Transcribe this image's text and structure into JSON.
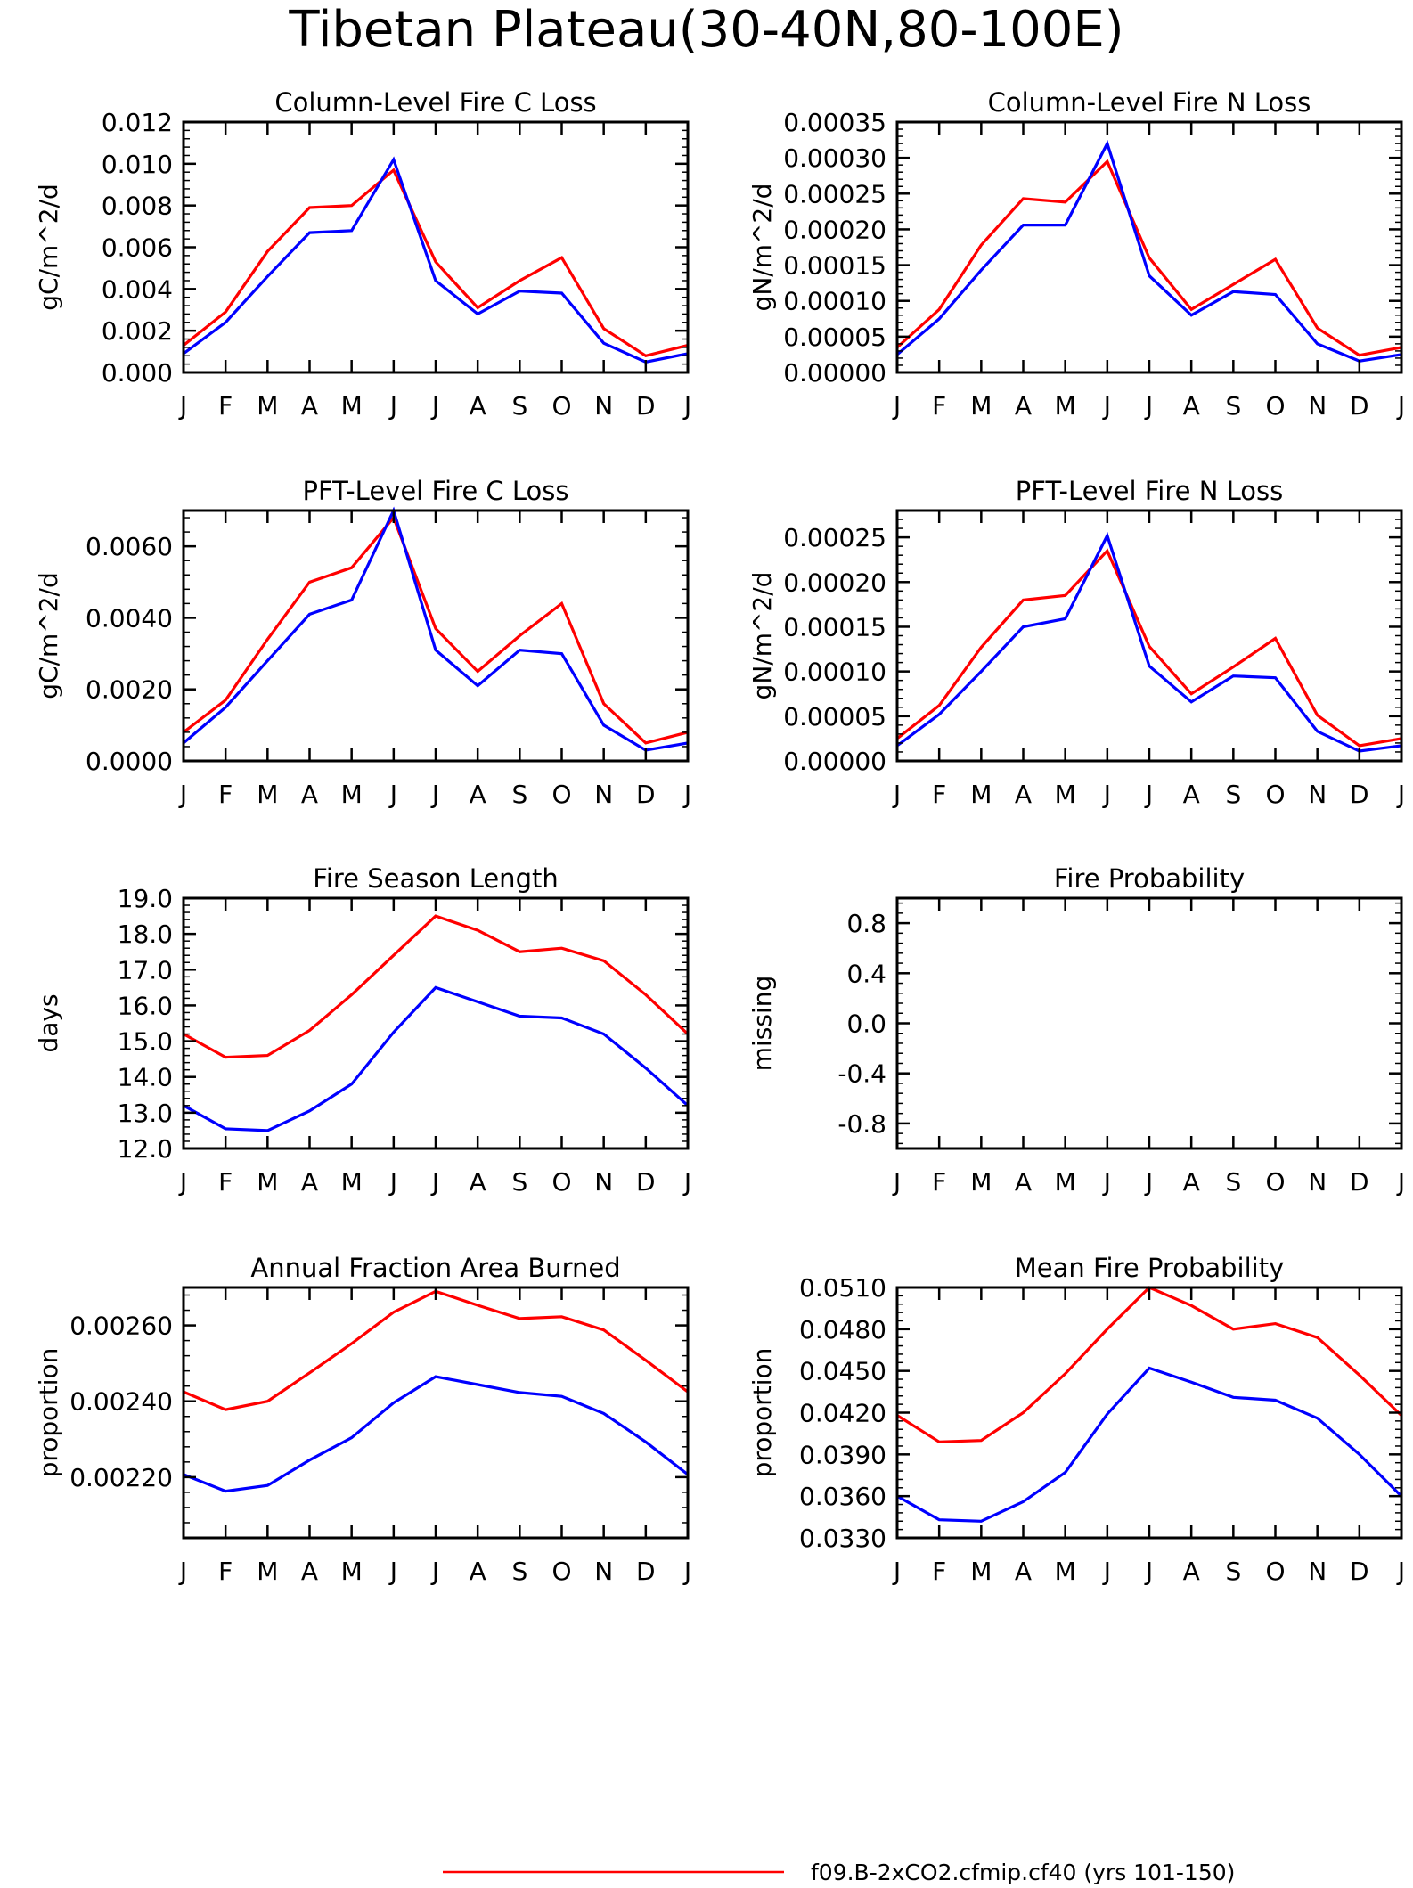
{
  "figure": {
    "title": "Tibetan Plateau(30-40N,80-100E)",
    "legend": [
      {
        "label": "f09.B-2xCO2.cfmip.cf40 (yrs 101-150)",
        "color": "#ff0000"
      }
    ]
  },
  "chart_data": [
    {
      "type": "line",
      "title": "Column-Level Fire C Loss",
      "xlabel": "",
      "ylabel": "gC/m^2/d",
      "categories": [
        "J",
        "F",
        "M",
        "A",
        "M",
        "J",
        "J",
        "A",
        "S",
        "O",
        "N",
        "D",
        "J"
      ],
      "ylim": [
        0,
        0.012
      ],
      "yticks": [
        "0.000",
        "0.002",
        "0.004",
        "0.006",
        "0.008",
        "0.010",
        "0.012"
      ],
      "ytick_values": [
        0,
        0.002,
        0.004,
        0.006,
        0.008,
        0.01,
        0.012
      ],
      "series": [
        {
          "color": "#ff0000",
          "values": [
            0.0013,
            0.0029,
            0.0058,
            0.0079,
            0.008,
            0.0097,
            0.0053,
            0.0031,
            0.0044,
            0.0055,
            0.0021,
            0.0008,
            0.0013
          ]
        },
        {
          "color": "#0000ff",
          "values": [
            0.0009,
            0.0024,
            0.0046,
            0.0067,
            0.0068,
            0.0102,
            0.0044,
            0.0028,
            0.0039,
            0.0038,
            0.0014,
            0.0005,
            0.0009
          ]
        }
      ]
    },
    {
      "type": "line",
      "title": "Column-Level Fire N Loss",
      "xlabel": "",
      "ylabel": "gN/m^2/d",
      "categories": [
        "J",
        "F",
        "M",
        "A",
        "M",
        "J",
        "J",
        "A",
        "S",
        "O",
        "N",
        "D",
        "J"
      ],
      "ylim": [
        0,
        0.00035
      ],
      "yticks": [
        "0.00000",
        "0.00005",
        "0.00010",
        "0.00015",
        "0.00020",
        "0.00025",
        "0.00030",
        "0.00035"
      ],
      "ytick_values": [
        0,
        5e-05,
        0.0001,
        0.00015,
        0.0002,
        0.00025,
        0.0003,
        0.00035
      ],
      "series": [
        {
          "color": "#ff0000",
          "values": [
            3.5e-05,
            8.8e-05,
            0.000178,
            0.000243,
            0.000238,
            0.000295,
            0.00016,
            8.8e-05,
            0.000123,
            0.000158,
            6.2e-05,
            2.4e-05,
            3.5e-05
          ]
        },
        {
          "color": "#0000ff",
          "values": [
            2.5e-05,
            7.5e-05,
            0.000143,
            0.000206,
            0.000206,
            0.00032,
            0.000135,
            8e-05,
            0.000113,
            0.000109,
            4e-05,
            1.6e-05,
            2.5e-05
          ]
        }
      ]
    },
    {
      "type": "line",
      "title": "PFT-Level Fire C Loss",
      "xlabel": "",
      "ylabel": "gC/m^2/d",
      "categories": [
        "J",
        "F",
        "M",
        "A",
        "M",
        "J",
        "J",
        "A",
        "S",
        "O",
        "N",
        "D",
        "J"
      ],
      "ylim": [
        0,
        0.007
      ],
      "yticks": [
        "0.0000",
        "0.0020",
        "0.0040",
        "0.0060"
      ],
      "ytick_values": [
        0,
        0.002,
        0.004,
        0.006
      ],
      "series": [
        {
          "color": "#ff0000",
          "values": [
            0.0008,
            0.0017,
            0.0034,
            0.005,
            0.0054,
            0.0068,
            0.0037,
            0.0025,
            0.0035,
            0.0044,
            0.0016,
            0.0005,
            0.0008
          ]
        },
        {
          "color": "#0000ff",
          "values": [
            0.0005,
            0.0015,
            0.0028,
            0.0041,
            0.0045,
            0.007,
            0.0031,
            0.0021,
            0.0031,
            0.003,
            0.001,
            0.0003,
            0.0005
          ]
        }
      ]
    },
    {
      "type": "line",
      "title": "PFT-Level Fire N Loss",
      "xlabel": "",
      "ylabel": "gN/m^2/d",
      "categories": [
        "J",
        "F",
        "M",
        "A",
        "M",
        "J",
        "J",
        "A",
        "S",
        "O",
        "N",
        "D",
        "J"
      ],
      "ylim": [
        0,
        0.00028
      ],
      "yticks": [
        "0.00000",
        "0.00005",
        "0.00010",
        "0.00015",
        "0.00020",
        "0.00025"
      ],
      "ytick_values": [
        0,
        5e-05,
        0.0001,
        0.00015,
        0.0002,
        0.00025
      ],
      "series": [
        {
          "color": "#ff0000",
          "values": [
            2.5e-05,
            6.2e-05,
            0.000127,
            0.00018,
            0.000185,
            0.000235,
            0.000128,
            7.5e-05,
            0.000105,
            0.000137,
            5.1e-05,
            1.7e-05,
            2.5e-05
          ]
        },
        {
          "color": "#0000ff",
          "values": [
            1.7e-05,
            5.2e-05,
            0.0001,
            0.00015,
            0.000159,
            0.000252,
            0.000106,
            6.6e-05,
            9.5e-05,
            9.3e-05,
            3.3e-05,
            1.1e-05,
            1.7e-05
          ]
        }
      ]
    },
    {
      "type": "line",
      "title": "Fire Season Length",
      "xlabel": "",
      "ylabel": "days",
      "categories": [
        "J",
        "F",
        "M",
        "A",
        "M",
        "J",
        "J",
        "A",
        "S",
        "O",
        "N",
        "D",
        "J"
      ],
      "ylim": [
        12,
        19
      ],
      "yticks": [
        "12.0",
        "13.0",
        "14.0",
        "15.0",
        "16.0",
        "17.0",
        "18.0",
        "19.0"
      ],
      "ytick_values": [
        12,
        13,
        14,
        15,
        16,
        17,
        18,
        19
      ],
      "series": [
        {
          "color": "#ff0000",
          "values": [
            15.2,
            14.55,
            14.6,
            15.3,
            16.3,
            17.4,
            18.5,
            18.1,
            17.5,
            17.6,
            17.25,
            16.3,
            15.2
          ]
        },
        {
          "color": "#0000ff",
          "values": [
            13.2,
            12.55,
            12.5,
            13.05,
            13.8,
            15.25,
            16.5,
            16.1,
            15.7,
            15.65,
            15.2,
            14.25,
            13.2
          ]
        }
      ]
    },
    {
      "type": "line",
      "title": "Fire Probability",
      "xlabel": "",
      "ylabel": "missing",
      "categories": [
        "J",
        "F",
        "M",
        "A",
        "M",
        "J",
        "J",
        "A",
        "S",
        "O",
        "N",
        "D",
        "J"
      ],
      "ylim": [
        -1,
        1
      ],
      "yticks": [
        "-0.8",
        "-0.4",
        "0.0",
        "0.4",
        "0.8"
      ],
      "ytick_values": [
        -0.8,
        -0.4,
        0,
        0.4,
        0.8
      ],
      "series": []
    },
    {
      "type": "line",
      "title": "Annual Fraction Area Burned",
      "xlabel": "",
      "ylabel": "proportion",
      "categories": [
        "J",
        "F",
        "M",
        "A",
        "M",
        "J",
        "J",
        "A",
        "S",
        "O",
        "N",
        "D",
        "J"
      ],
      "ylim": [
        0.00204,
        0.0027
      ],
      "yticks": [
        "0.00220",
        "0.00240",
        "0.00260"
      ],
      "ytick_values": [
        0.0022,
        0.0024,
        0.0026
      ],
      "series": [
        {
          "color": "#ff0000",
          "values": [
            0.002425,
            0.002378,
            0.0024,
            0.002475,
            0.002552,
            0.002635,
            0.00269,
            0.002653,
            0.002618,
            0.002623,
            0.002588,
            0.002508,
            0.002425
          ]
        },
        {
          "color": "#0000ff",
          "values": [
            0.002207,
            0.002163,
            0.002178,
            0.002245,
            0.002304,
            0.002396,
            0.002465,
            0.002444,
            0.002423,
            0.002413,
            0.002368,
            0.002293,
            0.002207
          ]
        }
      ]
    },
    {
      "type": "line",
      "title": "Mean Fire Probability",
      "xlabel": "",
      "ylabel": "proportion",
      "categories": [
        "J",
        "F",
        "M",
        "A",
        "M",
        "J",
        "J",
        "A",
        "S",
        "O",
        "N",
        "D",
        "J"
      ],
      "ylim": [
        0.033,
        0.051
      ],
      "yticks": [
        "0.0330",
        "0.0360",
        "0.0390",
        "0.0420",
        "0.0450",
        "0.0480",
        "0.0510"
      ],
      "ytick_values": [
        0.033,
        0.036,
        0.039,
        0.042,
        0.045,
        0.048,
        0.051
      ],
      "series": [
        {
          "color": "#ff0000",
          "values": [
            0.0418,
            0.0399,
            0.04,
            0.042,
            0.0448,
            0.048,
            0.051,
            0.0497,
            0.048,
            0.0484,
            0.0474,
            0.0447,
            0.0418
          ]
        },
        {
          "color": "#0000ff",
          "values": [
            0.036,
            0.0343,
            0.0342,
            0.0356,
            0.0377,
            0.0419,
            0.0452,
            0.0442,
            0.0431,
            0.0429,
            0.0416,
            0.039,
            0.036
          ]
        }
      ]
    }
  ]
}
